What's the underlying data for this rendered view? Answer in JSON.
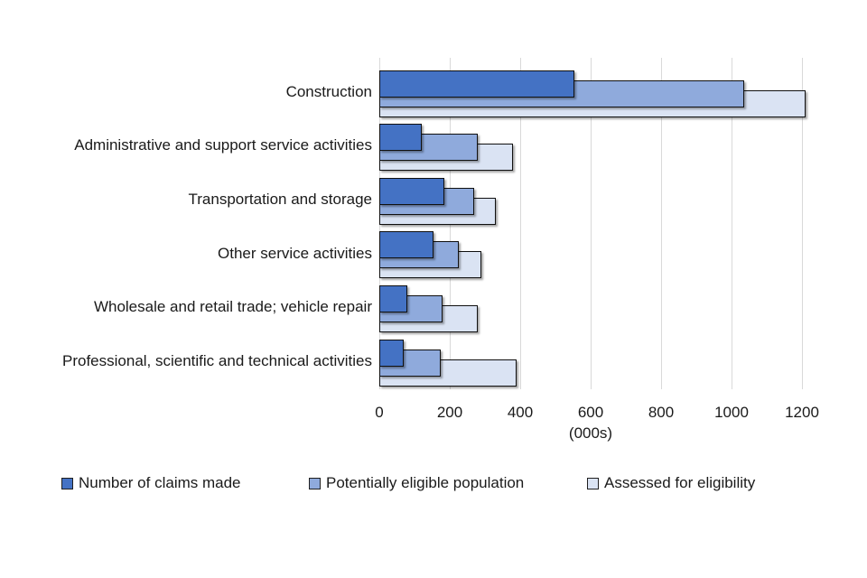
{
  "chart_data": {
    "type": "bar",
    "orientation": "horizontal",
    "title": "",
    "xlabel": "(000s)",
    "ylabel": "",
    "categories": [
      "Construction",
      "Administrative and support service activities",
      "Transportation and storage",
      "Other service activities",
      "Wholesale and retail trade; vehicle repair",
      "Professional, scientific and technical activities"
    ],
    "series": [
      {
        "name": "Number of claims made",
        "color": "#4472c4",
        "values": [
          555,
          120,
          185,
          155,
          80,
          70
        ]
      },
      {
        "name": "Potentially eligible population",
        "color": "#8faadc",
        "values": [
          1035,
          280,
          270,
          225,
          180,
          175
        ]
      },
      {
        "name": "Assessed for eligibility",
        "color": "#dae3f3",
        "values": [
          1210,
          380,
          330,
          290,
          280,
          390
        ]
      }
    ],
    "x_ticks": [
      0,
      200,
      400,
      600,
      800,
      1000,
      1200
    ],
    "xlim": [
      0,
      1250
    ],
    "grid": "vertical",
    "gridline_color": "#d9d9d9",
    "bar_border_color": "#101010",
    "legend_position": "bottom",
    "values_unit": "thousands"
  }
}
